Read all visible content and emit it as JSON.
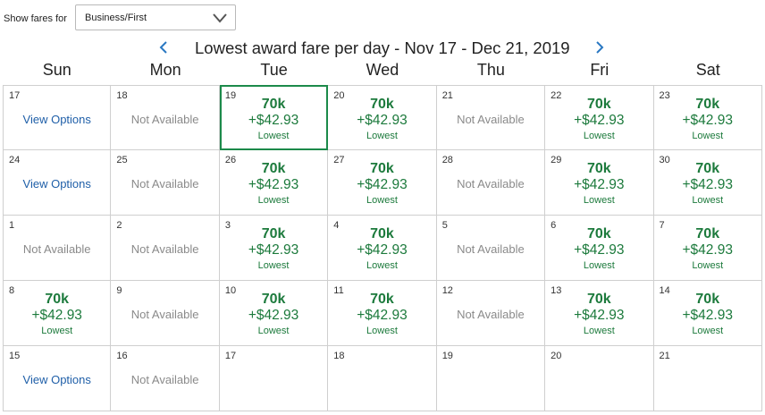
{
  "filter": {
    "label": "Show fares for",
    "selected": "Business/First"
  },
  "header": {
    "title": "Lowest award fare per day - Nov 17 - Dec 21, 2019",
    "prev_icon": "chevron-left-icon",
    "next_icon": "chevron-right-icon"
  },
  "weekdays": [
    "Sun",
    "Mon",
    "Tue",
    "Wed",
    "Thu",
    "Fri",
    "Sat"
  ],
  "colors": {
    "fare_green": "#1c7a3c",
    "link_blue": "#1f5fa8",
    "unavailable_gray": "#8a8a8a",
    "selected_border": "#1c8a4a"
  },
  "days": [
    {
      "day": "17",
      "status": "view",
      "text": "View Options"
    },
    {
      "day": "18",
      "status": "na",
      "text": "Not Available"
    },
    {
      "day": "19",
      "status": "fare",
      "miles": "70k",
      "price": "+$42.93",
      "note": "Lowest",
      "selected": true
    },
    {
      "day": "20",
      "status": "fare",
      "miles": "70k",
      "price": "+$42.93",
      "note": "Lowest"
    },
    {
      "day": "21",
      "status": "na",
      "text": "Not Available"
    },
    {
      "day": "22",
      "status": "fare",
      "miles": "70k",
      "price": "+$42.93",
      "note": "Lowest"
    },
    {
      "day": "23",
      "status": "fare",
      "miles": "70k",
      "price": "+$42.93",
      "note": "Lowest"
    },
    {
      "day": "24",
      "status": "view",
      "text": "View Options"
    },
    {
      "day": "25",
      "status": "na",
      "text": "Not Available"
    },
    {
      "day": "26",
      "status": "fare",
      "miles": "70k",
      "price": "+$42.93",
      "note": "Lowest"
    },
    {
      "day": "27",
      "status": "fare",
      "miles": "70k",
      "price": "+$42.93",
      "note": "Lowest"
    },
    {
      "day": "28",
      "status": "na",
      "text": "Not Available"
    },
    {
      "day": "29",
      "status": "fare",
      "miles": "70k",
      "price": "+$42.93",
      "note": "Lowest"
    },
    {
      "day": "30",
      "status": "fare",
      "miles": "70k",
      "price": "+$42.93",
      "note": "Lowest"
    },
    {
      "day": "1",
      "status": "na",
      "text": "Not Available"
    },
    {
      "day": "2",
      "status": "na",
      "text": "Not Available"
    },
    {
      "day": "3",
      "status": "fare",
      "miles": "70k",
      "price": "+$42.93",
      "note": "Lowest"
    },
    {
      "day": "4",
      "status": "fare",
      "miles": "70k",
      "price": "+$42.93",
      "note": "Lowest"
    },
    {
      "day": "5",
      "status": "na",
      "text": "Not Available"
    },
    {
      "day": "6",
      "status": "fare",
      "miles": "70k",
      "price": "+$42.93",
      "note": "Lowest"
    },
    {
      "day": "7",
      "status": "fare",
      "miles": "70k",
      "price": "+$42.93",
      "note": "Lowest"
    },
    {
      "day": "8",
      "status": "fare",
      "miles": "70k",
      "price": "+$42.93",
      "note": "Lowest"
    },
    {
      "day": "9",
      "status": "na",
      "text": "Not Available"
    },
    {
      "day": "10",
      "status": "fare",
      "miles": "70k",
      "price": "+$42.93",
      "note": "Lowest"
    },
    {
      "day": "11",
      "status": "fare",
      "miles": "70k",
      "price": "+$42.93",
      "note": "Lowest"
    },
    {
      "day": "12",
      "status": "na",
      "text": "Not Available"
    },
    {
      "day": "13",
      "status": "fare",
      "miles": "70k",
      "price": "+$42.93",
      "note": "Lowest"
    },
    {
      "day": "14",
      "status": "fare",
      "miles": "70k",
      "price": "+$42.93",
      "note": "Lowest"
    },
    {
      "day": "15",
      "status": "view",
      "text": "View Options"
    },
    {
      "day": "16",
      "status": "na",
      "text": "Not Available"
    },
    {
      "day": "17",
      "status": "empty"
    },
    {
      "day": "18",
      "status": "empty"
    },
    {
      "day": "19",
      "status": "empty"
    },
    {
      "day": "20",
      "status": "empty"
    },
    {
      "day": "21",
      "status": "empty"
    }
  ]
}
